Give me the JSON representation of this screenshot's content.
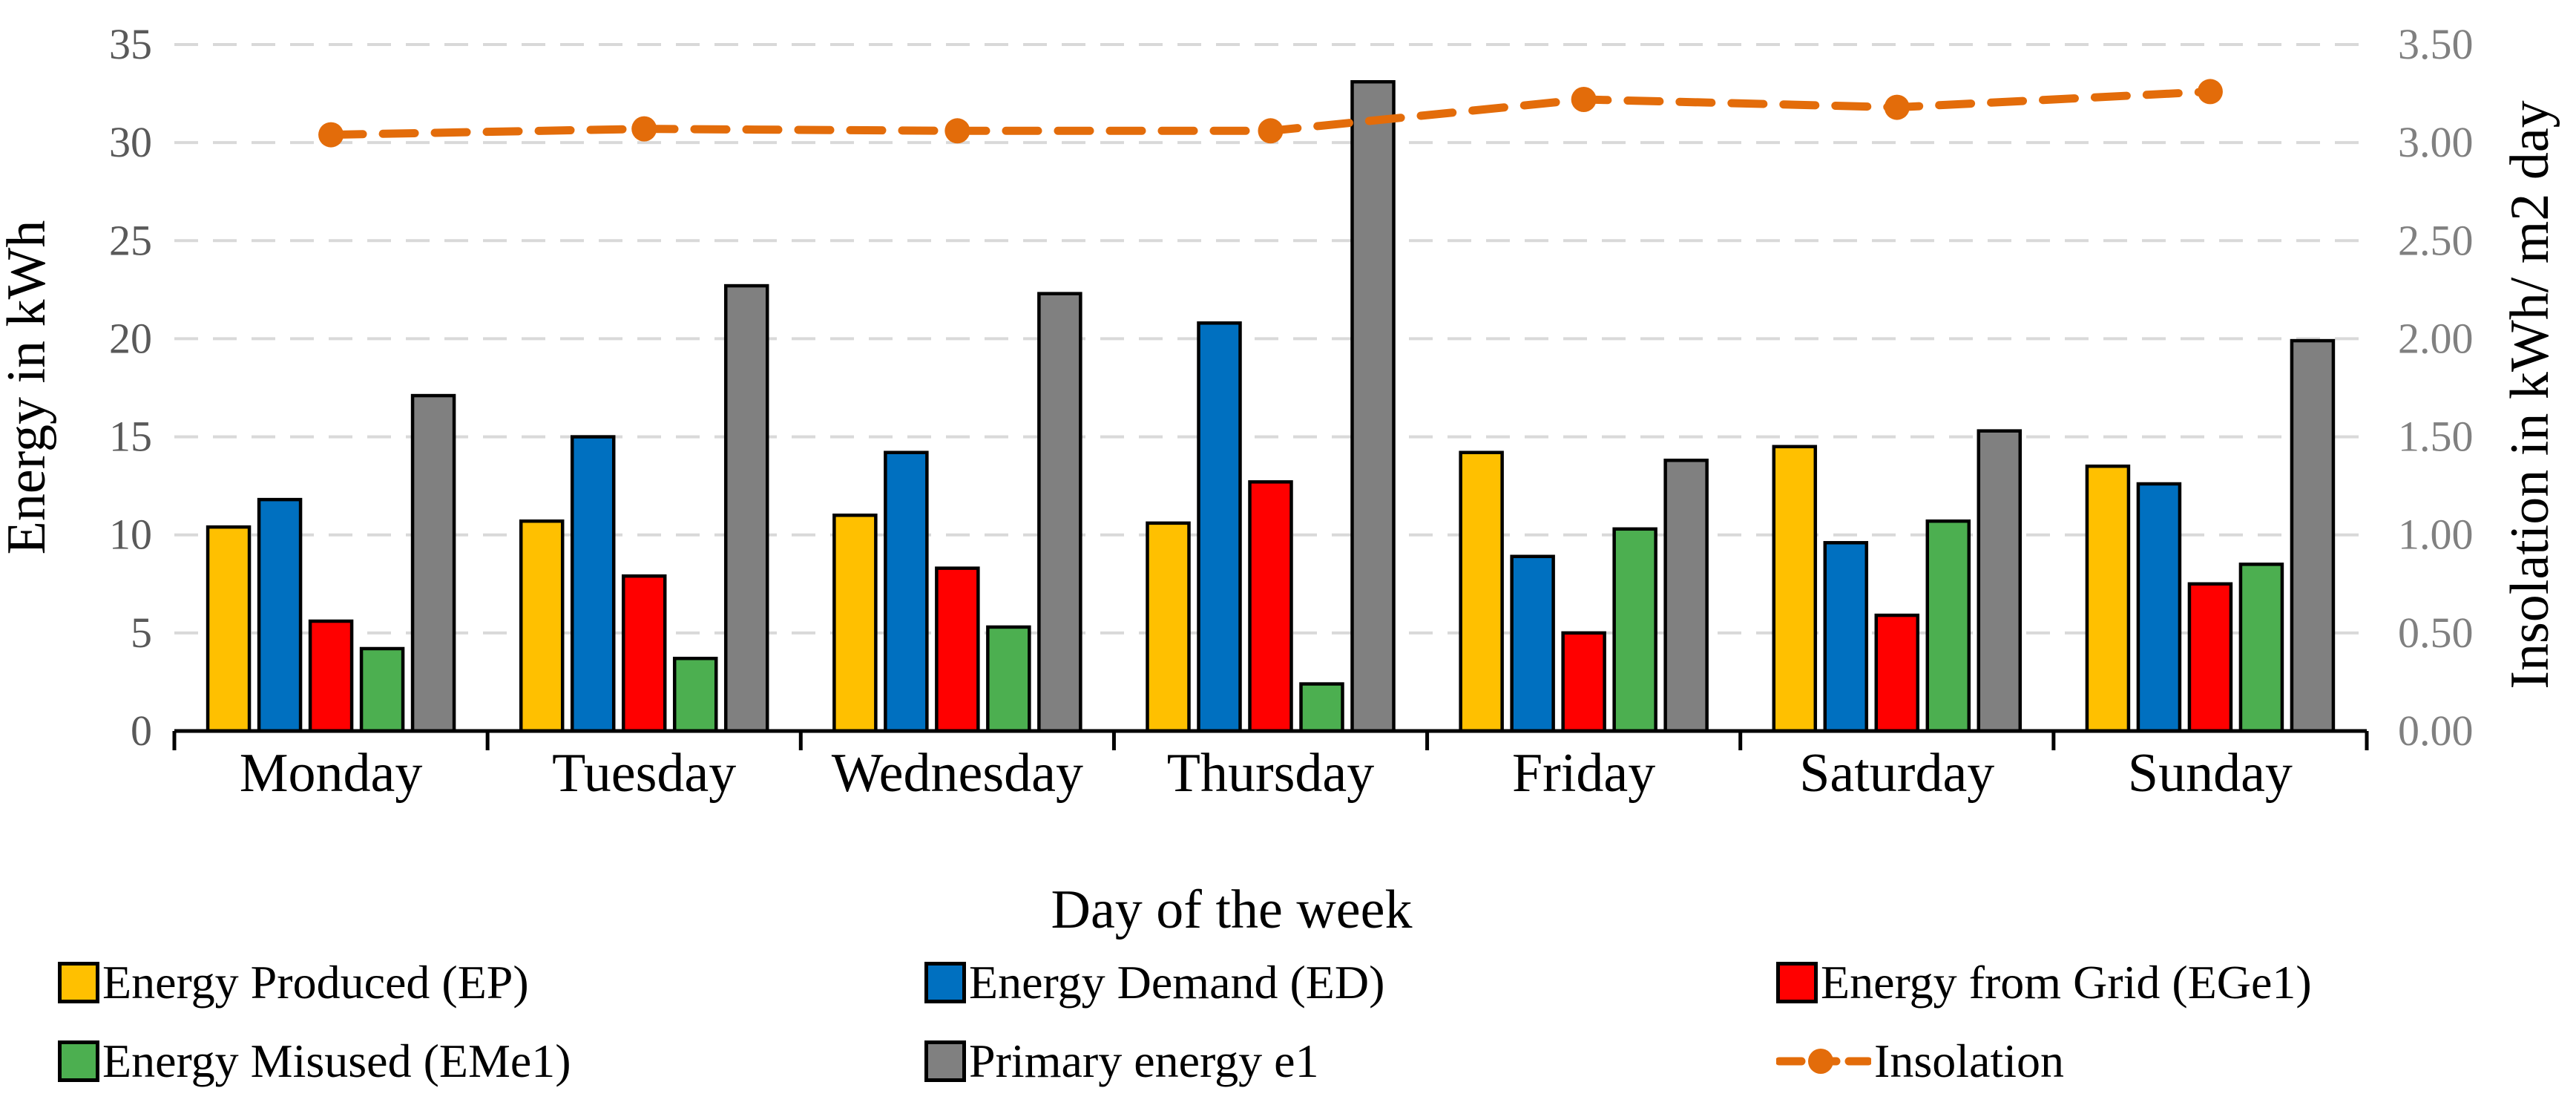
{
  "figure_title": "",
  "chart_data": {
    "type": "bar+line combo",
    "categories": [
      "Monday",
      "Tuesday",
      "Wednesday",
      "Thursday",
      "Friday",
      "Saturday",
      "Sunday"
    ],
    "series": [
      {
        "name": "Energy Produced (EP)",
        "type": "bar",
        "axis": "left",
        "color": "#FFC000",
        "values": [
          10.4,
          10.7,
          11.0,
          10.6,
          14.2,
          14.5,
          13.5
        ]
      },
      {
        "name": "Energy Demand (ED)",
        "type": "bar",
        "axis": "left",
        "color": "#0070C0",
        "values": [
          11.8,
          15.0,
          14.2,
          20.8,
          8.9,
          9.6,
          12.6
        ]
      },
      {
        "name": "Energy from Grid (EGe1)",
        "type": "bar",
        "axis": "left",
        "color": "#FF0000",
        "values": [
          5.6,
          7.9,
          8.3,
          12.7,
          5.0,
          5.9,
          7.5
        ]
      },
      {
        "name": "Energy Misused (EMe1)",
        "type": "bar",
        "axis": "left",
        "color": "#4CAF50",
        "values": [
          4.2,
          3.7,
          5.3,
          2.4,
          10.3,
          10.7,
          8.5
        ]
      },
      {
        "name": "Primary energy e1",
        "type": "bar",
        "axis": "left",
        "color": "#808080",
        "values": [
          17.1,
          22.7,
          22.3,
          33.1,
          13.8,
          15.3,
          19.9
        ]
      },
      {
        "name": "Insolation",
        "type": "line",
        "axis": "right",
        "color": "#E36C0A",
        "values": [
          3.04,
          3.07,
          3.06,
          3.06,
          3.22,
          3.18,
          3.26
        ]
      }
    ],
    "left_axis": {
      "title": "Energy in kWh",
      "min": 0,
      "max": 35,
      "step": 5,
      "tick_labels": [
        "0",
        "5",
        "10",
        "15",
        "20",
        "25",
        "30",
        "35"
      ],
      "tick_color": "#595959"
    },
    "right_axis": {
      "title": "Insolation in kWh/ m2 day",
      "min": 0.0,
      "max": 3.5,
      "step": 0.5,
      "tick_labels": [
        "0.00",
        "0.50",
        "1.00",
        "1.50",
        "2.00",
        "2.50",
        "3.00",
        "3.50"
      ],
      "tick_color": "#808080"
    },
    "x_axis": {
      "title": "Day of the week",
      "tick_color": "#000000"
    },
    "grid": {
      "style": "dashed horizontal",
      "color": "#D9D9D9"
    },
    "axis_line_color": "#000000",
    "legend_position": "bottom"
  }
}
